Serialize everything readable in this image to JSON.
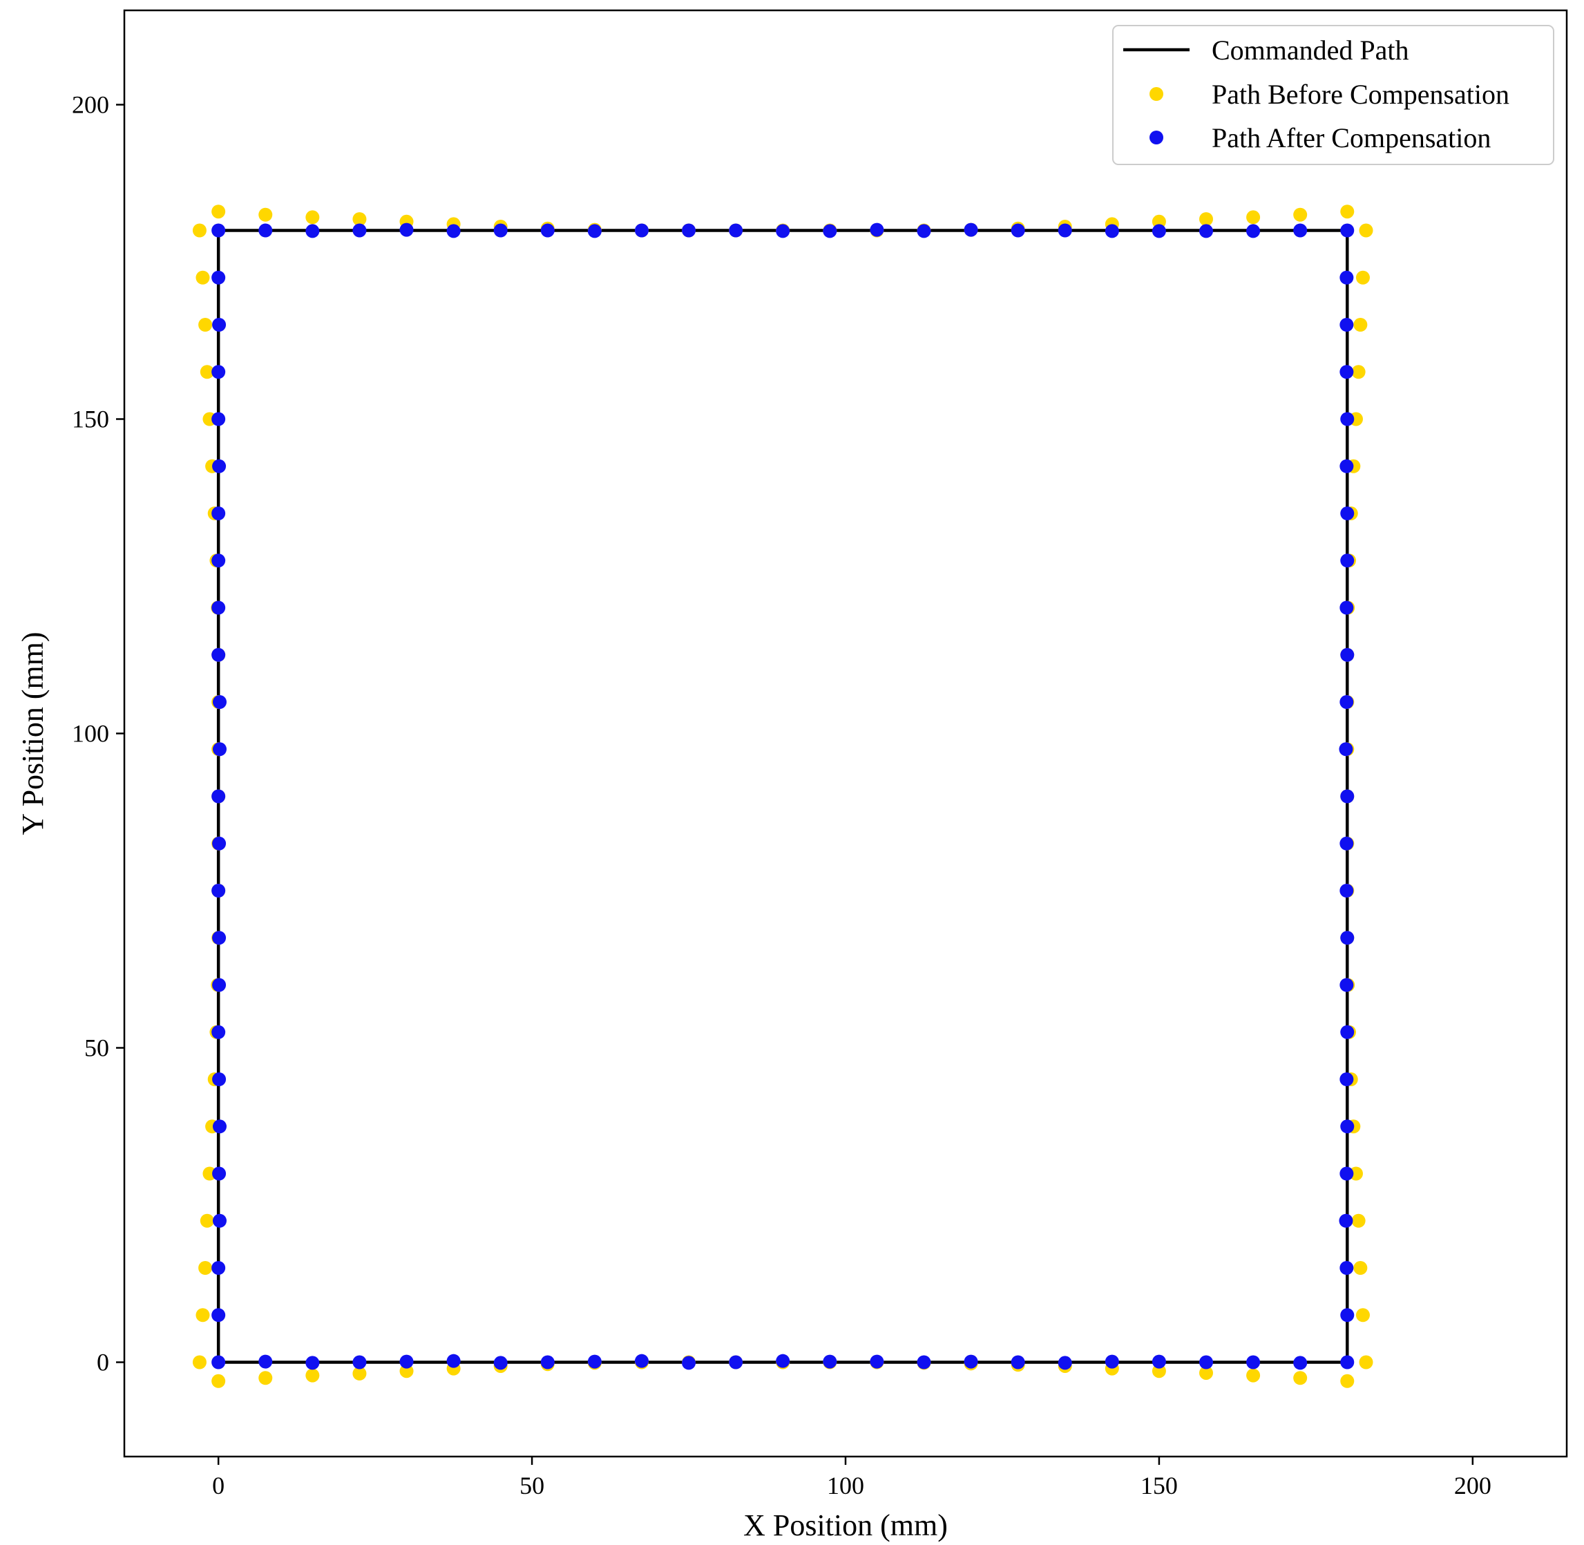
{
  "chart_data": {
    "type": "scatter",
    "title": "",
    "xlabel": "X Position (mm)",
    "ylabel": "Y Position (mm)",
    "xlim": [
      -15,
      215
    ],
    "ylim": [
      -15,
      215
    ],
    "xticks": [
      0,
      50,
      100,
      150,
      200
    ],
    "yticks": [
      0,
      50,
      100,
      150,
      200
    ],
    "grid": false,
    "legend_position": "top-right",
    "colors": {
      "commanded": "#000000",
      "before": "#FFD700",
      "after": "#1010F0"
    },
    "legend": [
      {
        "label": "Commanded Path",
        "kind": "line",
        "series": "commanded"
      },
      {
        "label": "Path Before Compensation",
        "kind": "marker",
        "series": "before"
      },
      {
        "label": "Path After Compensation",
        "kind": "marker",
        "series": "after"
      }
    ],
    "series": [
      {
        "name": "Commanded Path",
        "key": "commanded",
        "type": "line",
        "points": [
          [
            0,
            0
          ],
          [
            180,
            0
          ],
          [
            180,
            180
          ],
          [
            0,
            180
          ],
          [
            0,
            0
          ]
        ]
      },
      {
        "name": "Path Before Compensation",
        "key": "before",
        "type": "scatter",
        "points": [
          [
            -3,
            0
          ],
          [
            0,
            -3
          ],
          [
            7.5,
            -2.5
          ],
          [
            15,
            -2.1
          ],
          [
            22.5,
            -1.8
          ],
          [
            30,
            -1.4
          ],
          [
            37.5,
            -1
          ],
          [
            45,
            -0.6
          ],
          [
            52.5,
            -0.3
          ],
          [
            60,
            -0.1
          ],
          [
            67.5,
            0
          ],
          [
            75,
            0
          ],
          [
            82.5,
            0
          ],
          [
            90,
            0
          ],
          [
            97.5,
            0
          ],
          [
            105,
            0
          ],
          [
            112.5,
            -0.1
          ],
          [
            120,
            -0.2
          ],
          [
            127.5,
            -0.4
          ],
          [
            135,
            -0.6
          ],
          [
            142.5,
            -1
          ],
          [
            150,
            -1.4
          ],
          [
            157.5,
            -1.7
          ],
          [
            165,
            -2.1
          ],
          [
            172.5,
            -2.5
          ],
          [
            180,
            -3
          ],
          [
            183,
            0
          ],
          [
            182.5,
            7.5
          ],
          [
            182.1,
            15
          ],
          [
            181.8,
            22.5
          ],
          [
            181.4,
            30
          ],
          [
            181,
            37.5
          ],
          [
            180.6,
            45
          ],
          [
            180.3,
            52.5
          ],
          [
            180.1,
            60
          ],
          [
            180,
            67.5
          ],
          [
            180,
            75
          ],
          [
            180,
            82.5
          ],
          [
            180,
            90
          ],
          [
            180,
            97.5
          ],
          [
            180,
            105
          ],
          [
            180,
            112.5
          ],
          [
            180.1,
            120
          ],
          [
            180.3,
            127.5
          ],
          [
            180.6,
            135
          ],
          [
            181,
            142.5
          ],
          [
            181.4,
            150
          ],
          [
            181.8,
            157.5
          ],
          [
            182.1,
            165
          ],
          [
            182.5,
            172.5
          ],
          [
            183,
            180
          ],
          [
            180,
            183
          ],
          [
            172.5,
            182.5
          ],
          [
            165,
            182.1
          ],
          [
            157.5,
            181.8
          ],
          [
            150,
            181.4
          ],
          [
            142.5,
            181
          ],
          [
            135,
            180.6
          ],
          [
            127.5,
            180.3
          ],
          [
            120,
            180.1
          ],
          [
            112.5,
            180
          ],
          [
            105,
            180
          ],
          [
            97.5,
            180
          ],
          [
            90,
            180
          ],
          [
            82.5,
            180
          ],
          [
            75,
            180
          ],
          [
            67.5,
            180
          ],
          [
            60,
            180.1
          ],
          [
            52.5,
            180.3
          ],
          [
            45,
            180.6
          ],
          [
            37.5,
            181
          ],
          [
            30,
            181.4
          ],
          [
            22.5,
            181.8
          ],
          [
            15,
            182.1
          ],
          [
            7.5,
            182.5
          ],
          [
            0,
            183
          ],
          [
            -3,
            180
          ],
          [
            -2.5,
            172.5
          ],
          [
            -2.1,
            165
          ],
          [
            -1.8,
            157.5
          ],
          [
            -1.4,
            150
          ],
          [
            -1,
            142.5
          ],
          [
            -0.6,
            135
          ],
          [
            -0.3,
            127.5
          ],
          [
            -0.1,
            120
          ],
          [
            0,
            112.5
          ],
          [
            0,
            105
          ],
          [
            0,
            97.5
          ],
          [
            0,
            90
          ],
          [
            0,
            82.5
          ],
          [
            0,
            75
          ],
          [
            0,
            67.5
          ],
          [
            -0.1,
            60
          ],
          [
            -0.3,
            52.5
          ],
          [
            -0.6,
            45
          ],
          [
            -1,
            37.5
          ],
          [
            -1.4,
            30
          ],
          [
            -1.8,
            22.5
          ],
          [
            -2.1,
            15
          ],
          [
            -2.5,
            7.5
          ]
        ]
      },
      {
        "name": "Path After Compensation",
        "key": "after",
        "type": "scatter",
        "points": [
          [
            0,
            0
          ],
          [
            7.5,
            0.1
          ],
          [
            15,
            -0.1
          ],
          [
            22.5,
            0
          ],
          [
            30,
            0.1
          ],
          [
            37.5,
            0.2
          ],
          [
            45,
            -0.1
          ],
          [
            52.5,
            0
          ],
          [
            60,
            0.1
          ],
          [
            67.5,
            0.2
          ],
          [
            75,
            -0.1
          ],
          [
            82.5,
            0
          ],
          [
            90,
            0.2
          ],
          [
            97.5,
            0.1
          ],
          [
            105,
            0.1
          ],
          [
            112.5,
            0
          ],
          [
            120,
            0.1
          ],
          [
            127.5,
            0
          ],
          [
            135,
            -0.1
          ],
          [
            142.5,
            0.1
          ],
          [
            150,
            0.1
          ],
          [
            157.5,
            0
          ],
          [
            165,
            0
          ],
          [
            172.5,
            -0.1
          ],
          [
            180,
            0
          ],
          [
            180,
            7.5
          ],
          [
            179.9,
            15
          ],
          [
            179.8,
            22.5
          ],
          [
            179.9,
            30
          ],
          [
            180,
            37.5
          ],
          [
            179.9,
            45
          ],
          [
            180,
            52.5
          ],
          [
            179.9,
            60
          ],
          [
            180,
            67.5
          ],
          [
            179.9,
            75
          ],
          [
            179.9,
            82.5
          ],
          [
            180,
            90
          ],
          [
            179.8,
            97.5
          ],
          [
            179.9,
            105
          ],
          [
            180,
            112.5
          ],
          [
            179.9,
            120
          ],
          [
            180,
            127.5
          ],
          [
            180,
            135
          ],
          [
            179.9,
            142.5
          ],
          [
            180,
            150
          ],
          [
            179.9,
            157.5
          ],
          [
            179.9,
            165
          ],
          [
            179.9,
            172.5
          ],
          [
            180,
            180
          ],
          [
            172.5,
            180
          ],
          [
            165,
            179.9
          ],
          [
            157.5,
            179.9
          ],
          [
            150,
            179.9
          ],
          [
            142.5,
            179.9
          ],
          [
            135,
            180
          ],
          [
            127.5,
            180
          ],
          [
            120,
            180.1
          ],
          [
            112.5,
            179.9
          ],
          [
            105,
            180.1
          ],
          [
            97.5,
            179.9
          ],
          [
            90,
            179.9
          ],
          [
            82.5,
            180
          ],
          [
            75,
            180
          ],
          [
            67.5,
            180
          ],
          [
            60,
            179.9
          ],
          [
            52.5,
            180
          ],
          [
            45,
            180
          ],
          [
            37.5,
            179.9
          ],
          [
            30,
            180.1
          ],
          [
            22.5,
            180
          ],
          [
            15,
            179.9
          ],
          [
            7.5,
            180
          ],
          [
            0,
            180
          ],
          [
            0,
            172.5
          ],
          [
            0.1,
            165
          ],
          [
            0,
            157.5
          ],
          [
            0,
            150
          ],
          [
            0.1,
            142.5
          ],
          [
            0,
            135
          ],
          [
            0,
            127.5
          ],
          [
            0,
            120
          ],
          [
            0,
            112.5
          ],
          [
            0.2,
            105
          ],
          [
            0.2,
            97.5
          ],
          [
            0,
            90
          ],
          [
            0.1,
            82.5
          ],
          [
            0,
            75
          ],
          [
            0.1,
            67.5
          ],
          [
            0.1,
            60
          ],
          [
            0,
            52.5
          ],
          [
            0.1,
            45
          ],
          [
            0.2,
            37.5
          ],
          [
            0.1,
            30
          ],
          [
            0.2,
            22.5
          ],
          [
            0,
            15
          ],
          [
            0,
            7.5
          ]
        ]
      }
    ]
  }
}
